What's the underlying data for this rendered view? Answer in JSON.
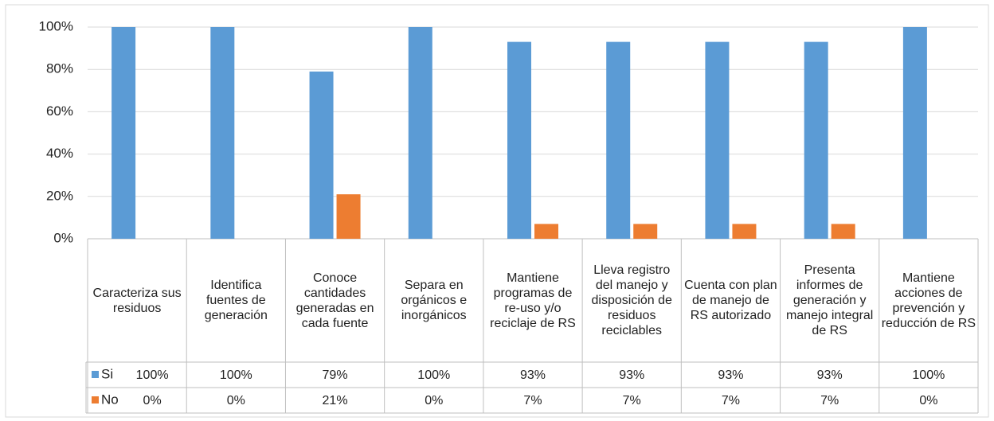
{
  "chart_data": {
    "type": "bar",
    "categories": [
      "Caracteriza sus residuos",
      "Identifica fuentes de generación",
      "Conoce cantidades generadas en cada fuente",
      "Separa en orgánicos e inorgánicos",
      "Mantiene programas de re-uso y/o reciclaje de RS",
      "Lleva registro del manejo y disposición de residuos reciclables",
      "Cuenta con plan de manejo de RS autorizado",
      "Presenta informes de generación y manejo integral de RS",
      "Mantiene acciones de prevención y reducción de RS"
    ],
    "series": [
      {
        "name": "Si",
        "color": "#5b9bd5",
        "values": [
          100,
          100,
          79,
          100,
          93,
          93,
          93,
          93,
          100
        ],
        "value_labels": [
          "100%",
          "100%",
          "79%",
          "100%",
          "93%",
          "93%",
          "93%",
          "93%",
          "100%"
        ]
      },
      {
        "name": "No",
        "color": "#ed7d31",
        "values": [
          0,
          0,
          21,
          0,
          7,
          7,
          7,
          7,
          0
        ],
        "value_labels": [
          "0%",
          "0%",
          "21%",
          "0%",
          "7%",
          "7%",
          "7%",
          "7%",
          "0%"
        ]
      }
    ],
    "ylim": [
      0,
      100
    ],
    "yticks": [
      {
        "value": 0,
        "label": "0%"
      },
      {
        "value": 20,
        "label": "20%"
      },
      {
        "value": 40,
        "label": "40%"
      },
      {
        "value": 60,
        "label": "60%"
      },
      {
        "value": 80,
        "label": "80%"
      },
      {
        "value": 100,
        "label": "100%"
      }
    ],
    "grid": true
  }
}
